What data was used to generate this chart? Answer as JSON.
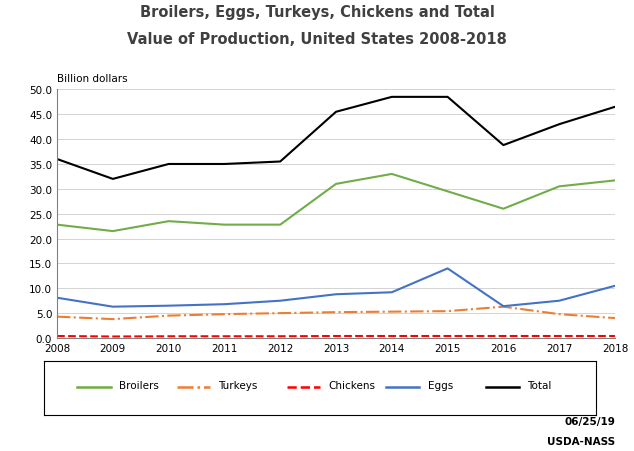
{
  "title_line1": "Broilers, Eggs, Turkeys, Chickens and Total",
  "title_line2": "Value of Production, United States 2008-2018",
  "ylabel": "Billion dollars",
  "years": [
    2008,
    2009,
    2010,
    2011,
    2012,
    2013,
    2014,
    2015,
    2016,
    2017,
    2018
  ],
  "broilers": [
    22.8,
    21.5,
    23.5,
    22.8,
    22.8,
    31.0,
    33.0,
    29.5,
    26.0,
    30.5,
    31.7
  ],
  "turkeys": [
    4.3,
    3.8,
    4.5,
    4.8,
    5.0,
    5.2,
    5.3,
    5.4,
    6.3,
    4.8,
    4.0
  ],
  "chickens": [
    0.4,
    0.3,
    0.35,
    0.35,
    0.35,
    0.4,
    0.4,
    0.4,
    0.4,
    0.4,
    0.4
  ],
  "eggs": [
    8.1,
    6.3,
    6.5,
    6.8,
    7.5,
    8.8,
    9.2,
    14.0,
    6.4,
    7.5,
    10.5
  ],
  "total": [
    36.0,
    32.0,
    35.0,
    35.0,
    35.5,
    45.5,
    48.5,
    48.5,
    38.8,
    43.0,
    46.5
  ],
  "broiler_color": "#70ad47",
  "turkey_color": "#ed7d31",
  "chicken_color": "#ff0000",
  "egg_color": "#4472c4",
  "total_color": "#000000",
  "ylim": [
    0,
    50
  ],
  "yticks": [
    0.0,
    5.0,
    10.0,
    15.0,
    20.0,
    25.0,
    30.0,
    35.0,
    40.0,
    45.0,
    50.0
  ],
  "watermark_line1": "USDA-NASS",
  "watermark_line2": "06/25/19",
  "background_color": "#ffffff"
}
